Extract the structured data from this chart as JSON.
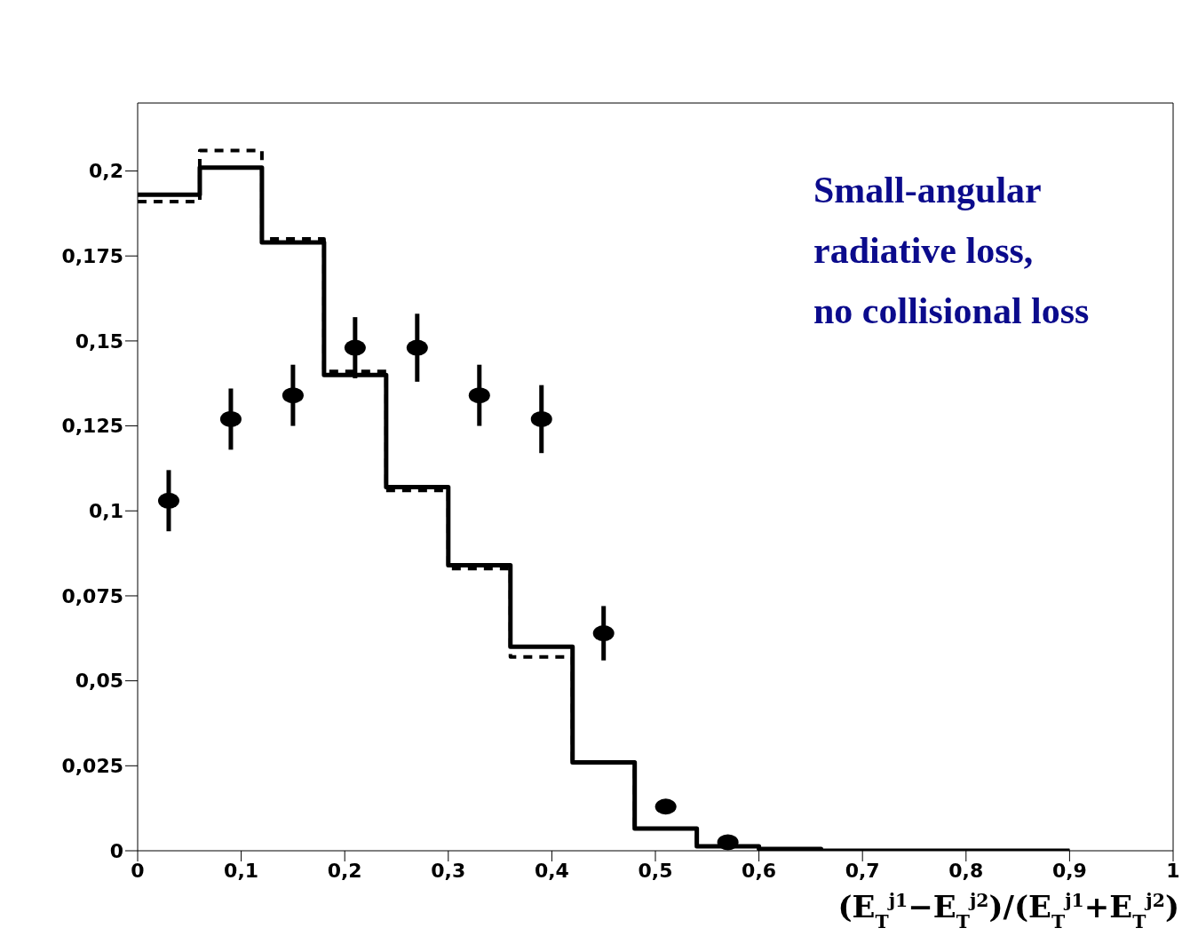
{
  "chart_data": {
    "type": "step",
    "series": [
      {
        "color": "#000000",
        "line_style": "solid",
        "x": [
          0,
          0.06,
          0.12,
          0.18,
          0.24,
          0.3,
          0.36,
          0.42,
          0.48,
          0.54,
          0.6,
          0.66,
          0.72,
          0.78,
          0.84,
          0.9
        ],
        "values": [
          0.193,
          0.201,
          0.179,
          0.14,
          0.107,
          0.084,
          0.06,
          0.026,
          0.0065,
          0.0013,
          0.0005,
          0,
          0,
          0,
          0,
          0
        ]
      },
      {
        "color": "#000000",
        "line_style": "dashed",
        "x": [
          0,
          0.06,
          0.12,
          0.18,
          0.24,
          0.3,
          0.36,
          0.42,
          0.48,
          0.54,
          0.6,
          0.66,
          0.72,
          0.78,
          0.84,
          0.9
        ],
        "values": [
          0.191,
          0.206,
          0.18,
          0.141,
          0.106,
          0.083,
          0.057,
          0.026,
          0.0065,
          0.0013,
          0.0005,
          0,
          0,
          0,
          0,
          0
        ]
      },
      {
        "type": "scatter",
        "color": "#000000",
        "marker": "circle",
        "x": [
          0.03,
          0.09,
          0.15,
          0.21,
          0.27,
          0.33,
          0.39,
          0.45,
          0.51,
          0.57
        ],
        "values": [
          0.103,
          0.127,
          0.134,
          0.148,
          0.148,
          0.134,
          0.127,
          0.064,
          0.013,
          0.0025
        ],
        "errors": [
          0.009,
          0.009,
          0.009,
          0.009,
          0.01,
          0.009,
          0.01,
          0.008,
          null,
          null
        ]
      }
    ],
    "xlabel": "(E$_{T}$$^{j1}$−E$_{T}$$^{j2}$)/(E$_{T}$$^{j1}$+E$_{T}$$^{j2}$)",
    "annotations": [
      "Small-angular",
      "radiative loss,",
      "no collisional loss"
    ],
    "xlim": [
      0,
      1
    ],
    "xticks": [
      0,
      {
        "value": 0.1,
        "label": "0,1"
      },
      {
        "value": 0.2,
        "label": "0,2"
      },
      {
        "value": 0.3,
        "label": "0,3"
      },
      {
        "value": 0.4,
        "label": "0,4"
      },
      {
        "value": 0.5,
        "label": "0,5"
      },
      {
        "value": 0.6,
        "label": "0,6"
      },
      {
        "value": 0.7,
        "label": "0,7"
      },
      {
        "value": 0.8,
        "label": "0,8"
      },
      {
        "value": 0.9,
        "label": "0,9"
      },
      1
    ],
    "ylim": [
      0,
      0.22
    ],
    "yticks": [
      0,
      {
        "value": 0.025,
        "label": "0,025"
      },
      {
        "value": 0.05,
        "label": "0,05"
      },
      {
        "value": 0.075,
        "label": "0,075"
      },
      {
        "value": 0.1,
        "label": "0,1"
      },
      {
        "value": 0.125,
        "label": "0,125"
      },
      {
        "value": 0.15,
        "label": "0,15"
      },
      {
        "value": 0.175,
        "label": "0,175"
      },
      {
        "value": 0.2,
        "label": "0,2"
      }
    ]
  }
}
